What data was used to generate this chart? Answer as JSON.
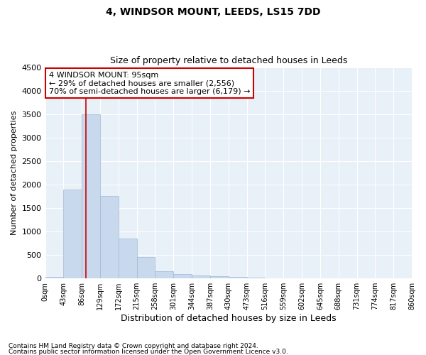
{
  "title": "4, WINDSOR MOUNT, LEEDS, LS15 7DD",
  "subtitle": "Size of property relative to detached houses in Leeds",
  "xlabel": "Distribution of detached houses by size in Leeds",
  "ylabel": "Number of detached properties",
  "bin_edges": [
    0,
    43,
    86,
    129,
    172,
    215,
    258,
    301,
    344,
    387,
    430,
    473,
    516,
    559,
    602,
    645,
    688,
    731,
    774,
    817,
    860
  ],
  "bar_heights": [
    30,
    1900,
    3500,
    1750,
    850,
    450,
    150,
    100,
    70,
    55,
    30,
    15,
    10,
    5,
    3,
    2,
    1,
    1,
    1,
    0
  ],
  "bar_color": "#c9d9ed",
  "bar_edgecolor": "#a0b8d0",
  "property_line_x": 95,
  "property_line_color": "#cc0000",
  "annotation_line1": "4 WINDSOR MOUNT: 95sqm",
  "annotation_line2": "← 29% of detached houses are smaller (2,556)",
  "annotation_line3": "70% of semi-detached houses are larger (6,179) →",
  "annotation_box_color": "#cc0000",
  "annotation_facecolor": "white",
  "ylim": [
    0,
    4500
  ],
  "yticks": [
    0,
    500,
    1000,
    1500,
    2000,
    2500,
    3000,
    3500,
    4000,
    4500
  ],
  "tick_labels": [
    "0sqm",
    "43sqm",
    "86sqm",
    "129sqm",
    "172sqm",
    "215sqm",
    "258sqm",
    "301sqm",
    "344sqm",
    "387sqm",
    "430sqm",
    "473sqm",
    "516sqm",
    "559sqm",
    "602sqm",
    "645sqm",
    "688sqm",
    "731sqm",
    "774sqm",
    "817sqm",
    "860sqm"
  ],
  "footnote1": "Contains HM Land Registry data © Crown copyright and database right 2024.",
  "footnote2": "Contains public sector information licensed under the Open Government Licence v3.0.",
  "plot_background": "#e8f0f8",
  "grid_color": "white",
  "title_fontsize": 10,
  "subtitle_fontsize": 9,
  "annotation_fontsize": 8
}
